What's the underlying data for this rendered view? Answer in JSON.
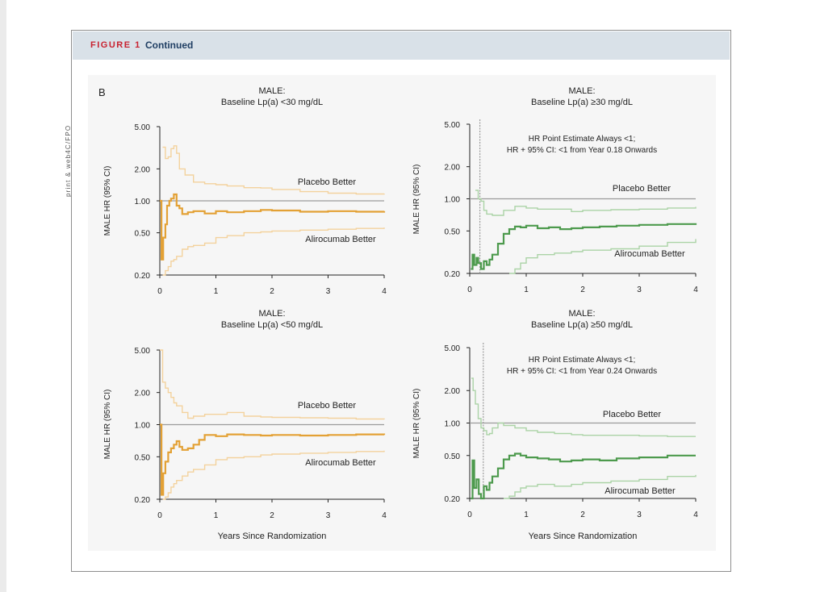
{
  "figure": {
    "label": "FIGURE 1",
    "subtitle": "Continued",
    "panel_letter": "B",
    "side_note": "print & web4C/FPO"
  },
  "colors": {
    "orange_main": "#e3a135",
    "orange_ci": "#f3d29d",
    "green_main": "#4d9a4d",
    "green_ci": "#abd3a6",
    "reference": "#9b9b9b",
    "header_band": "#d9e1e8"
  },
  "chart_data": [
    {
      "type": "line",
      "title": "MALE:\nBaseline Lp(a) <30 mg/dL",
      "ylabel": "MALE HR (95% CI)",
      "xlabel": "",
      "xlim": [
        0,
        4
      ],
      "xticks": [
        0,
        1,
        2,
        3,
        4
      ],
      "yscale": "log",
      "ylim": [
        0.2,
        5.0
      ],
      "yticks": [
        0.2,
        0.5,
        1.0,
        2.0,
        5.0
      ],
      "ytick_labels": [
        "0.20",
        "0.50",
        "1.00",
        "2.00",
        "5.00"
      ],
      "reference_line": 1.0,
      "color": "orange",
      "annotations": {
        "upper": "Placebo Better",
        "lower": "Alirocumab Better"
      },
      "series": [
        {
          "name": "HR",
          "x": [
            0,
            0.03,
            0.06,
            0.1,
            0.13,
            0.17,
            0.2,
            0.25,
            0.3,
            0.35,
            0.4,
            0.5,
            0.6,
            0.8,
            1.0,
            1.2,
            1.5,
            1.8,
            2.0,
            2.5,
            3.0,
            3.5,
            4.0
          ],
          "values": [
            1.0,
            0.28,
            0.45,
            0.6,
            0.9,
            1.0,
            1.05,
            1.15,
            0.9,
            0.85,
            0.75,
            0.78,
            0.8,
            0.76,
            0.8,
            0.78,
            0.8,
            0.82,
            0.81,
            0.79,
            0.8,
            0.79,
            0.8
          ]
        },
        {
          "name": "Upper 95% CI",
          "x": [
            0.05,
            0.1,
            0.15,
            0.2,
            0.25,
            0.3,
            0.35,
            0.45,
            0.6,
            0.8,
            1.0,
            1.2,
            1.5,
            1.8,
            2.0,
            2.5,
            3.0,
            3.5,
            4.0
          ],
          "values": [
            3.2,
            2.5,
            2.6,
            3.1,
            3.3,
            2.8,
            2.0,
            1.75,
            1.5,
            1.45,
            1.42,
            1.38,
            1.33,
            1.32,
            1.28,
            1.22,
            1.18,
            1.16,
            1.17
          ]
        },
        {
          "name": "Lower 95% CI",
          "x": [
            0.05,
            0.1,
            0.15,
            0.2,
            0.25,
            0.3,
            0.4,
            0.5,
            0.6,
            0.8,
            1.0,
            1.2,
            1.5,
            1.8,
            2.0,
            2.5,
            3.0,
            3.5,
            4.0
          ],
          "values": [
            0.2,
            0.22,
            0.24,
            0.27,
            0.28,
            0.3,
            0.35,
            0.37,
            0.38,
            0.4,
            0.45,
            0.47,
            0.5,
            0.51,
            0.52,
            0.53,
            0.54,
            0.55,
            0.56
          ]
        }
      ]
    },
    {
      "type": "line",
      "title": "MALE:\nBaseline Lp(a) ≥30 mg/dL",
      "ylabel": "MALE HR (95% CI)",
      "xlabel": "",
      "xlim": [
        0,
        4
      ],
      "xticks": [
        0,
        1,
        2,
        3,
        4
      ],
      "yscale": "log",
      "ylim": [
        0.2,
        5.0
      ],
      "yticks": [
        0.2,
        0.5,
        1.0,
        2.0,
        5.0
      ],
      "ytick_labels": [
        "0.20",
        "0.50",
        "1.00",
        "2.00",
        "5.00"
      ],
      "reference_line": 1.0,
      "vertical_line_x": 0.18,
      "color": "green",
      "annotations": {
        "upper": "Placebo Better",
        "lower": "Alirocumab Better",
        "note_1": "HR Point Estimate Always <1;",
        "note_2": "HR + 95% CI: <1 from Year 0.18 Onwards"
      },
      "series": [
        {
          "name": "HR",
          "x": [
            0.02,
            0.05,
            0.08,
            0.12,
            0.15,
            0.2,
            0.25,
            0.3,
            0.35,
            0.4,
            0.5,
            0.6,
            0.7,
            0.8,
            0.9,
            1.0,
            1.2,
            1.4,
            1.6,
            1.8,
            2.0,
            2.3,
            2.6,
            3.0,
            3.5,
            4.0
          ],
          "values": [
            0.22,
            0.3,
            0.24,
            0.28,
            0.25,
            0.22,
            0.26,
            0.24,
            0.27,
            0.3,
            0.38,
            0.47,
            0.52,
            0.55,
            0.54,
            0.56,
            0.53,
            0.54,
            0.52,
            0.53,
            0.54,
            0.55,
            0.56,
            0.57,
            0.58,
            0.59
          ]
        },
        {
          "name": "Upper 95% CI",
          "x": [
            0.1,
            0.15,
            0.2,
            0.25,
            0.3,
            0.4,
            0.5,
            0.6,
            0.8,
            1.0,
            1.2,
            1.5,
            1.8,
            2.0,
            2.5,
            3.0,
            3.5,
            4.0
          ],
          "values": [
            1.2,
            1.0,
            0.95,
            0.78,
            0.72,
            0.7,
            0.7,
            0.78,
            0.85,
            0.82,
            0.8,
            0.8,
            0.76,
            0.78,
            0.79,
            0.8,
            0.82,
            0.84
          ]
        },
        {
          "name": "Lower 95% CI",
          "x": [
            0.7,
            0.8,
            0.9,
            1.0,
            1.2,
            1.5,
            1.8,
            2.0,
            2.5,
            3.0,
            3.5,
            4.0
          ],
          "values": [
            0.2,
            0.22,
            0.25,
            0.28,
            0.3,
            0.31,
            0.32,
            0.33,
            0.34,
            0.36,
            0.39,
            0.42
          ]
        }
      ]
    },
    {
      "type": "line",
      "title": "MALE:\nBaseline Lp(a) <50 mg/dL",
      "ylabel": "MALE HR (95% CI)",
      "xlabel": "Years Since Randomization",
      "xlim": [
        0,
        4
      ],
      "xticks": [
        0,
        1,
        2,
        3,
        4
      ],
      "yscale": "log",
      "ylim": [
        0.2,
        5.0
      ],
      "yticks": [
        0.2,
        0.5,
        1.0,
        2.0,
        5.0
      ],
      "ytick_labels": [
        "0.20",
        "0.50",
        "1.00",
        "2.00",
        "5.00"
      ],
      "reference_line": 1.0,
      "color": "orange",
      "annotations": {
        "upper": "Placebo Better",
        "lower": "Alirocumab Better"
      },
      "series": [
        {
          "name": "HR",
          "x": [
            0,
            0.03,
            0.06,
            0.1,
            0.15,
            0.2,
            0.25,
            0.3,
            0.35,
            0.4,
            0.5,
            0.6,
            0.7,
            0.8,
            1.0,
            1.2,
            1.5,
            1.8,
            2.0,
            2.5,
            3.0,
            3.5,
            4.0
          ],
          "values": [
            1.0,
            0.22,
            0.35,
            0.45,
            0.55,
            0.6,
            0.65,
            0.7,
            0.62,
            0.58,
            0.6,
            0.65,
            0.72,
            0.8,
            0.78,
            0.81,
            0.8,
            0.79,
            0.8,
            0.79,
            0.8,
            0.81,
            0.8
          ]
        },
        {
          "name": "Upper 95% CI",
          "x": [
            0,
            0.05,
            0.1,
            0.15,
            0.2,
            0.25,
            0.3,
            0.4,
            0.5,
            0.6,
            0.8,
            1.0,
            1.2,
            1.5,
            1.8,
            2.0,
            2.5,
            3.0,
            3.5,
            4.0
          ],
          "values": [
            5.0,
            2.5,
            2.2,
            2.0,
            1.8,
            1.6,
            1.5,
            1.3,
            1.15,
            1.2,
            1.25,
            1.25,
            1.3,
            1.2,
            1.18,
            1.17,
            1.16,
            1.15,
            1.13,
            1.12
          ]
        },
        {
          "name": "Lower 95% CI",
          "x": [
            0.05,
            0.1,
            0.15,
            0.2,
            0.25,
            0.3,
            0.4,
            0.5,
            0.6,
            0.8,
            1.0,
            1.2,
            1.5,
            1.8,
            2.0,
            2.5,
            3.0,
            3.5,
            4.0
          ],
          "values": [
            0.2,
            0.21,
            0.23,
            0.26,
            0.28,
            0.3,
            0.33,
            0.36,
            0.38,
            0.42,
            0.47,
            0.49,
            0.5,
            0.52,
            0.53,
            0.54,
            0.55,
            0.56,
            0.57
          ]
        }
      ]
    },
    {
      "type": "line",
      "title": "MALE:\nBaseline Lp(a) ≥50 mg/dL",
      "ylabel": "MALE HR (95% CI)",
      "xlabel": "Years Since Randomization",
      "xlim": [
        0,
        4
      ],
      "xticks": [
        0,
        1,
        2,
        3,
        4
      ],
      "yscale": "log",
      "ylim": [
        0.2,
        5.0
      ],
      "yticks": [
        0.2,
        0.5,
        1.0,
        2.0,
        5.0
      ],
      "ytick_labels": [
        "0.20",
        "0.50",
        "1.00",
        "2.00",
        "5.00"
      ],
      "reference_line": 1.0,
      "vertical_line_x": 0.24,
      "color": "green",
      "annotations": {
        "upper": "Placebo Better",
        "lower": "Alirocumab Better",
        "note_1": "HR Point Estimate Always <1;",
        "note_2": "HR + 95% CI: <1 from Year 0.24 Onwards"
      },
      "series": [
        {
          "name": "HR",
          "x": [
            0.02,
            0.05,
            0.08,
            0.12,
            0.16,
            0.2,
            0.25,
            0.3,
            0.35,
            0.4,
            0.5,
            0.6,
            0.7,
            0.8,
            0.9,
            1.0,
            1.2,
            1.4,
            1.6,
            1.8,
            2.0,
            2.3,
            2.6,
            3.0,
            3.5,
            4.0
          ],
          "values": [
            0.2,
            0.45,
            0.25,
            0.3,
            0.22,
            0.2,
            0.26,
            0.24,
            0.28,
            0.32,
            0.38,
            0.46,
            0.5,
            0.52,
            0.5,
            0.48,
            0.47,
            0.46,
            0.44,
            0.45,
            0.46,
            0.45,
            0.47,
            0.48,
            0.5,
            0.5
          ]
        },
        {
          "name": "Upper 95% CI",
          "x": [
            0.03,
            0.06,
            0.1,
            0.15,
            0.2,
            0.25,
            0.3,
            0.35,
            0.4,
            0.5,
            0.6,
            0.8,
            1.0,
            1.2,
            1.5,
            1.8,
            2.0,
            2.5,
            3.0,
            3.5,
            4.0
          ],
          "values": [
            2.6,
            2.0,
            1.5,
            1.1,
            0.9,
            0.85,
            0.78,
            0.8,
            0.9,
            1.0,
            0.95,
            0.9,
            0.85,
            0.82,
            0.8,
            0.78,
            0.77,
            0.77,
            0.76,
            0.75,
            0.75
          ]
        },
        {
          "name": "Lower 95% CI",
          "x": [
            0.6,
            0.7,
            0.8,
            0.9,
            1.0,
            1.2,
            1.5,
            1.8,
            2.0,
            2.5,
            3.0,
            3.5,
            4.0
          ],
          "values": [
            0.2,
            0.21,
            0.23,
            0.25,
            0.26,
            0.27,
            0.26,
            0.27,
            0.28,
            0.29,
            0.3,
            0.32,
            0.33
          ]
        }
      ]
    }
  ]
}
